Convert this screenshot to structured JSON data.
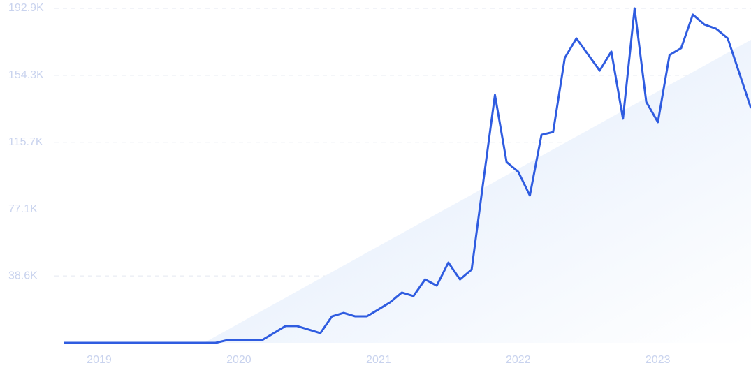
{
  "chart_data": {
    "type": "line",
    "categories": [
      null,
      null,
      null,
      "2019",
      null,
      null,
      null,
      null,
      null,
      null,
      null,
      null,
      null,
      null,
      null,
      "2020",
      null,
      null,
      null,
      null,
      null,
      null,
      null,
      null,
      null,
      null,
      null,
      "2021",
      null,
      null,
      null,
      null,
      null,
      null,
      null,
      null,
      null,
      null,
      null,
      "2022",
      null,
      null,
      null,
      null,
      null,
      null,
      null,
      null,
      null,
      null,
      null,
      "2023",
      null,
      null,
      null,
      null,
      null,
      null,
      null,
      null
    ],
    "series": [
      {
        "color": "#2f5ce0",
        "values": [
          0,
          0,
          0,
          0,
          0,
          0,
          0,
          0,
          0,
          0,
          0,
          0,
          0,
          0,
          1600,
          1600,
          1600,
          1600,
          5600,
          9700,
          9700,
          7700,
          5600,
          15300,
          17300,
          15300,
          15300,
          19300,
          23400,
          29000,
          27000,
          36600,
          33000,
          46300,
          36600,
          42300,
          93000,
          143000,
          104300,
          98700,
          85000,
          120000,
          121600,
          164300,
          175600,
          166300,
          157000,
          168000,
          129300,
          192900,
          139000,
          127300,
          166000,
          170000,
          189300,
          183600,
          181200,
          175600,
          155500,
          135300
        ]
      },
      {
        "color": "#e3edfb",
        "values": [
          null,
          null,
          null,
          null,
          null,
          null,
          null,
          null,
          null,
          null,
          null,
          null,
          0,
          3700,
          7400,
          11200,
          14900,
          18600,
          22300,
          26000,
          29800,
          33500,
          37200,
          40900,
          44600,
          48300,
          52100,
          55800,
          59500,
          63200,
          66900,
          70700,
          74400,
          78100,
          81800,
          85500,
          89300,
          93000,
          96700,
          100400,
          104100,
          107900,
          111600,
          115300,
          119000,
          122700,
          126400,
          130200,
          133900,
          137600,
          141300,
          145000,
          148800,
          152500,
          156200,
          159900,
          163600,
          167400,
          171100,
          174800
        ]
      }
    ],
    "ylim": [
      0,
      192900
    ],
    "yticks": [
      {
        "value": 38600,
        "label": "38.6K"
      },
      {
        "value": 77100,
        "label": "77.1K"
      },
      {
        "value": 115700,
        "label": "115.7K"
      },
      {
        "value": 154300,
        "label": "154.3K"
      },
      {
        "value": 192900,
        "label": "192.9K"
      }
    ],
    "grid": true
  }
}
